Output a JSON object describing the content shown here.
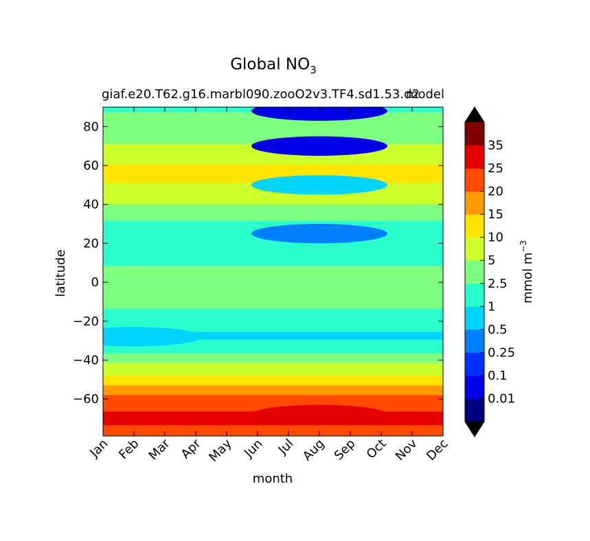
{
  "chart_data": {
    "type": "heatmap",
    "title": "Global NO",
    "title_subscript": "3",
    "subtitle_left": "giaf.e20.T62.g16.marbl090.zooO2v3.TF4.sd1.53.d2",
    "subtitle_right": "model",
    "xlabel": "month",
    "ylabel": "latitude",
    "x_categories": [
      "Jan",
      "Feb",
      "Mar",
      "Apr",
      "May",
      "Jun",
      "Jul",
      "Aug",
      "Sep",
      "Oct",
      "Nov",
      "Dec"
    ],
    "y_ticks": [
      "80",
      "60",
      "40",
      "20",
      "0",
      "−20",
      "−40",
      "−60"
    ],
    "y_tick_values": [
      80,
      60,
      40,
      20,
      0,
      -20,
      -40,
      -60
    ],
    "ylim": [
      -79,
      90
    ],
    "colorbar": {
      "label": "mmol m",
      "label_superscript": "−3",
      "levels": [
        0,
        0.01,
        0.1,
        0.25,
        0.5,
        1,
        2.5,
        5,
        10,
        15,
        20,
        25,
        35,
        40
      ],
      "tick_labels": [
        "0.01",
        "0.1",
        "0.25",
        "0.5",
        "1",
        "2.5",
        "5",
        "10",
        "15",
        "20",
        "25",
        "35"
      ],
      "colors": [
        "#00007f",
        "#0000e8",
        "#0030ff",
        "#0080ff",
        "#00d4ff",
        "#2affcd",
        "#7fff7f",
        "#cdff2a",
        "#ffe500",
        "#ff9a00",
        "#ff4a00",
        "#e30000",
        "#7f0000"
      ],
      "extend": "both",
      "extend_under_color": "#000000",
      "extend_over_color": "#000000"
    },
    "latitudinal_profile": {
      "latitude": [
        90,
        85,
        75,
        68,
        63,
        55,
        45,
        35,
        25,
        15,
        5,
        0,
        -10,
        -20,
        -28,
        -35,
        -40,
        -45,
        -50,
        -55,
        -60,
        -65,
        -70,
        -75
      ],
      "values_mmol_m3": [
        2.0,
        3.0,
        3.5,
        6.0,
        9.0,
        12.0,
        7.0,
        3.0,
        1.5,
        1.5,
        3.0,
        4.0,
        3.0,
        1.5,
        0.8,
        1.8,
        4.0,
        7.0,
        12.0,
        17.0,
        22.0,
        24.0,
        27.0,
        24.0
      ]
    },
    "features": [
      {
        "month": "Aug",
        "latitude": 88,
        "value_mmol_m3": 0.03
      },
      {
        "month": "Aug",
        "latitude": 70,
        "value_mmol_m3": 0.05
      },
      {
        "month": "Aug",
        "latitude": 50,
        "value_mmol_m3": 0.7
      },
      {
        "month": "Aug",
        "latitude": 25,
        "value_mmol_m3": 0.4
      },
      {
        "month": "Feb",
        "latitude": -28,
        "value_mmol_m3": 0.8
      },
      {
        "month": "Aug",
        "latitude": -68,
        "value_mmol_m3": 27.0
      }
    ],
    "grid": false
  }
}
